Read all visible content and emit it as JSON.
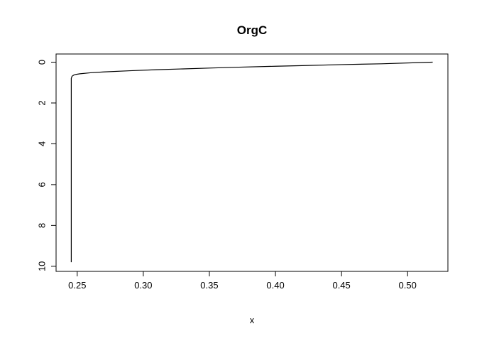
{
  "chart_data": {
    "type": "line",
    "title": "OrgC",
    "xlabel": "x",
    "ylabel": "",
    "xlim": [
      0.234,
      0.5305
    ],
    "ylim": [
      10.25,
      -0.4
    ],
    "y_reversed": true,
    "x_ticks": [
      0.25,
      0.3,
      0.35,
      0.4,
      0.45,
      0.5
    ],
    "x_tick_labels": [
      "0.25",
      "0.30",
      "0.35",
      "0.40",
      "0.45",
      "0.50"
    ],
    "y_ticks": [
      0,
      2,
      4,
      6,
      8,
      10
    ],
    "y_tick_labels": [
      "0",
      "2",
      "4",
      "6",
      "8",
      "10"
    ],
    "grid": false,
    "legend": "none",
    "line_color": "#000000",
    "series": [
      {
        "x": [
          0.519,
          0.48,
          0.45,
          0.42,
          0.4,
          0.37,
          0.35,
          0.33,
          0.31,
          0.29,
          0.27,
          0.26,
          0.252,
          0.249,
          0.2475,
          0.2465,
          0.246,
          0.2455,
          0.2455,
          0.2455
        ],
        "y": [
          0.0,
          0.08,
          0.12,
          0.17,
          0.2,
          0.25,
          0.29,
          0.33,
          0.37,
          0.42,
          0.48,
          0.52,
          0.57,
          0.6,
          0.63,
          0.67,
          0.7,
          0.8,
          5.0,
          9.8
        ]
      }
    ]
  }
}
